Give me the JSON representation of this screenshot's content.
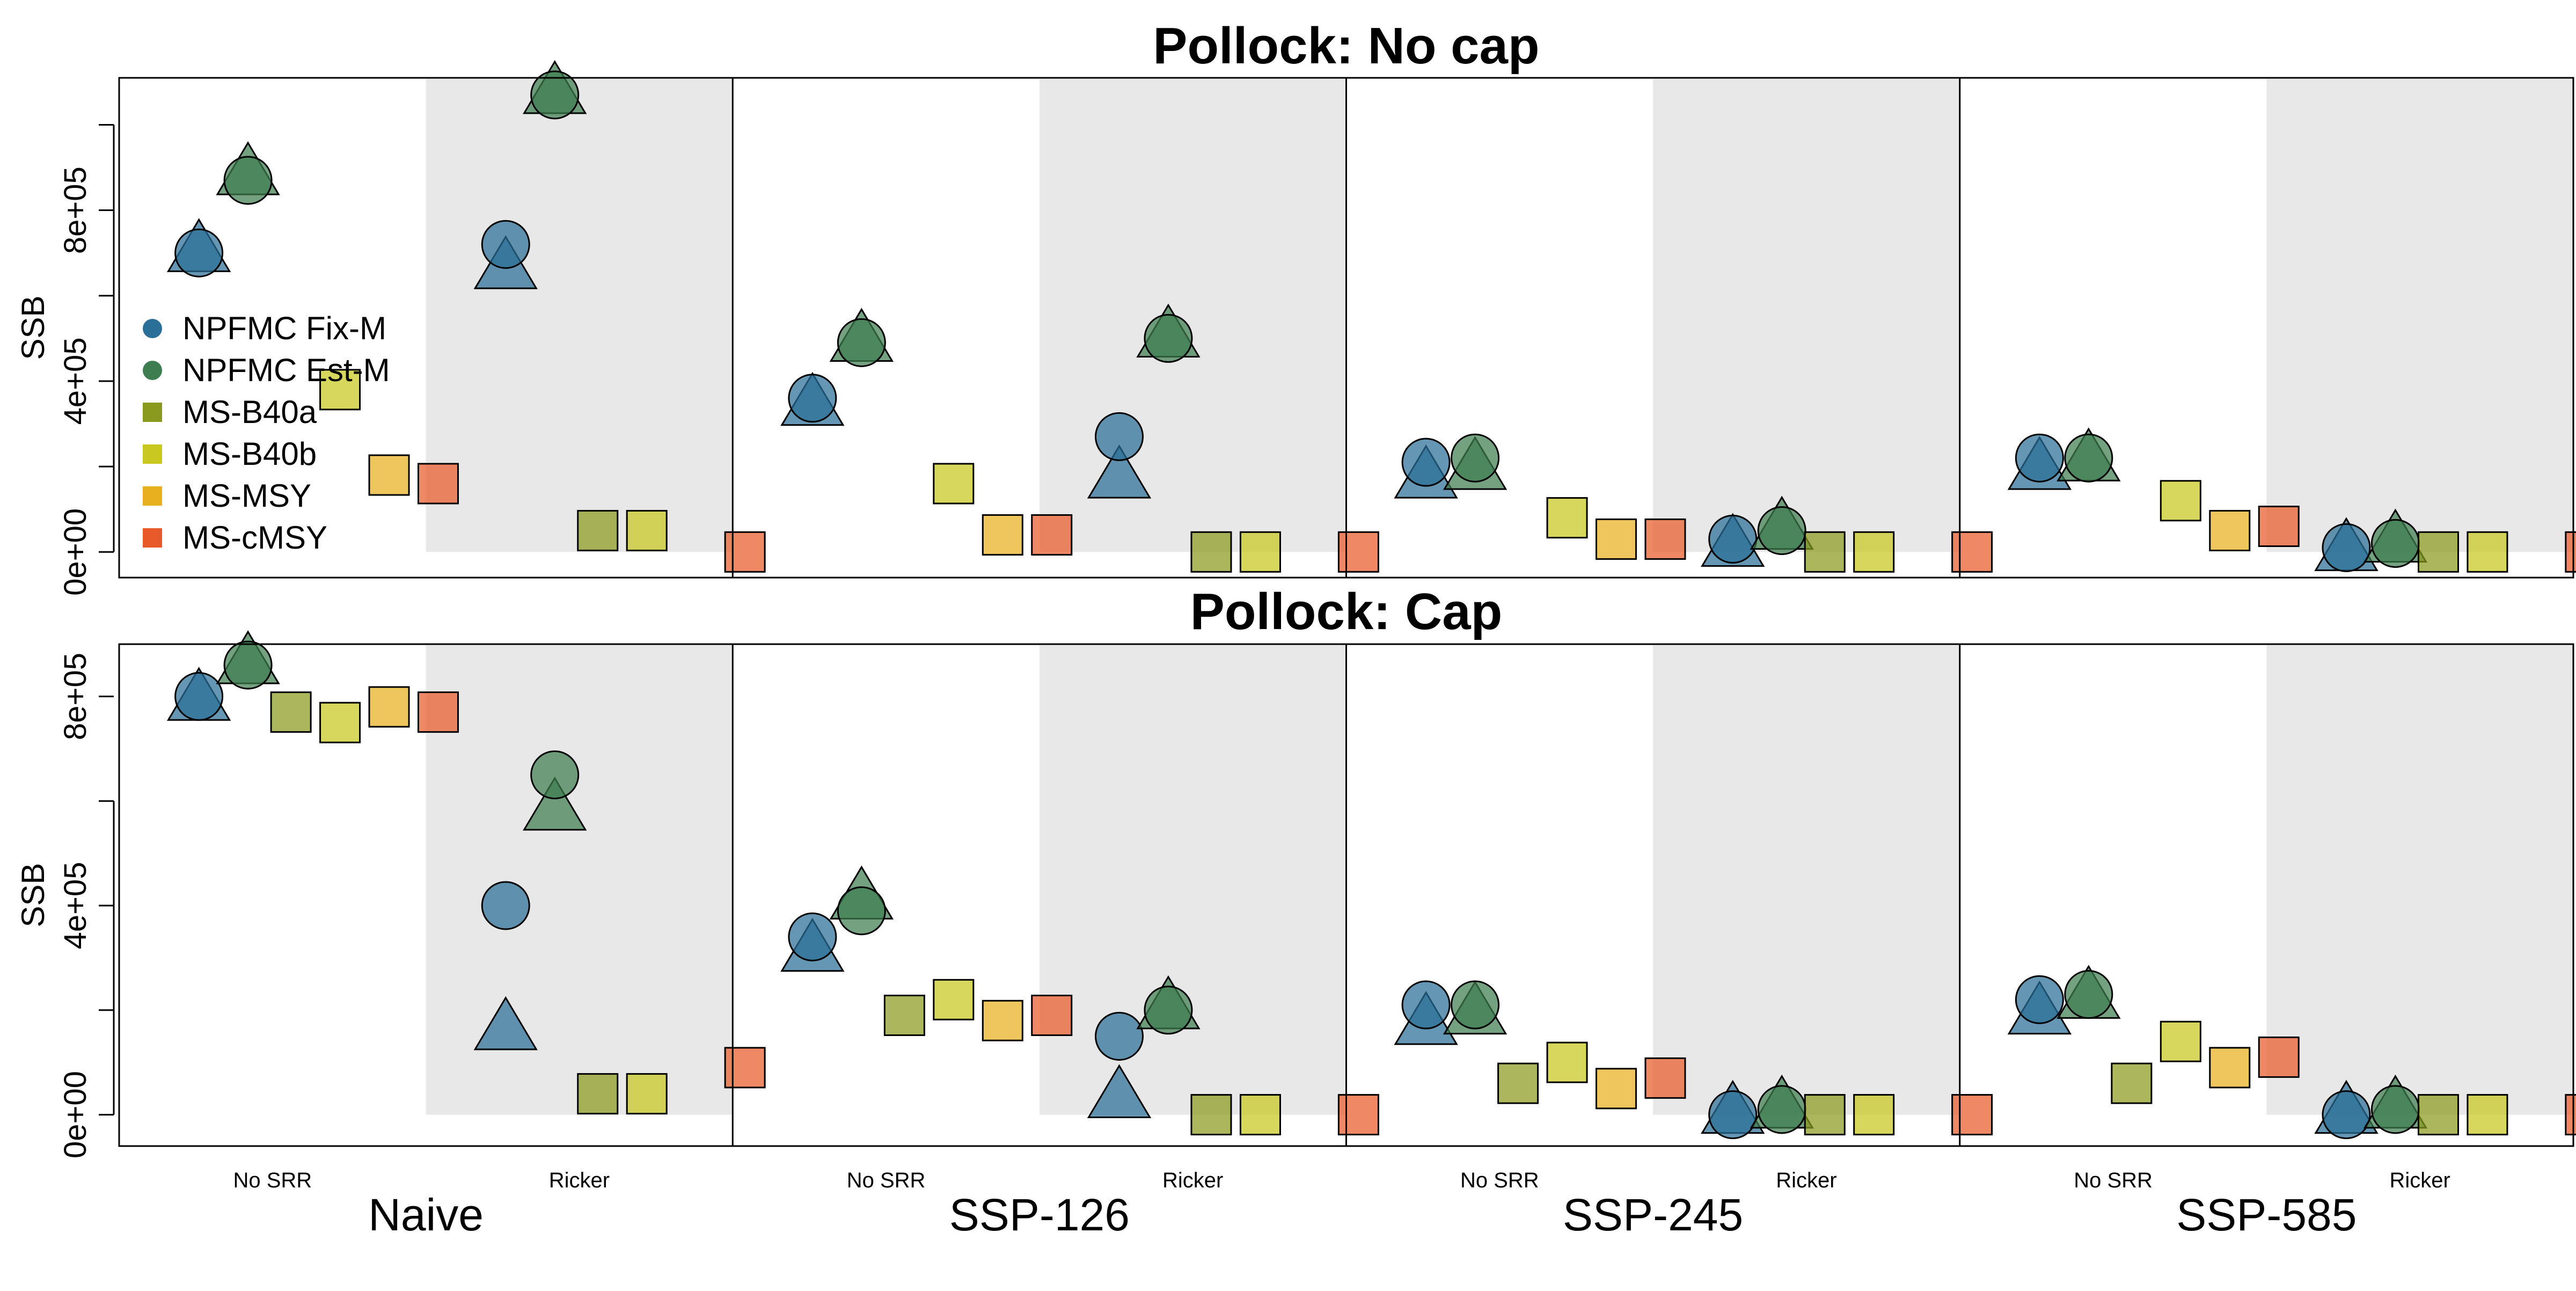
{
  "chart_data": [
    {
      "type": "scatter",
      "title": "Pollock: No cap",
      "ylabel": "SSB",
      "ylim": [
        -60000,
        1110000
      ],
      "yticks": [
        0,
        400000,
        800000
      ],
      "ytick_labels": [
        "0e+00",
        "4e+05",
        "8e+05"
      ],
      "yminor_ticks": [
        200000,
        600000,
        1000000
      ],
      "scenarios": [
        "Naive",
        "SSP-126",
        "SSP-245",
        "SSP-585"
      ],
      "srr": [
        "No SRR",
        "Ricker"
      ],
      "legend_position": "left",
      "series": [
        {
          "name": "NPFMC Fix-M",
          "color": "#2a6f97",
          "marker": "circle+triangle",
          "circle": [
            [
              700000,
              720000
            ],
            [
              360000,
              270000
            ],
            [
              210000,
              30000
            ],
            [
              220000,
              10000
            ]
          ],
          "triangle": [
            [
              700000,
              660000
            ],
            [
              340000,
              170000
            ],
            [
              170000,
              10000
            ],
            [
              190000,
              0
            ]
          ]
        },
        {
          "name": "NPFMC Est-M",
          "color": "#3e7d4f",
          "marker": "circle+triangle",
          "circle": [
            [
              870000,
              1070000
            ],
            [
              490000,
              500000
            ],
            [
              220000,
              50000
            ],
            [
              220000,
              20000
            ]
          ],
          "triangle": [
            [
              880000,
              1070000
            ],
            [
              490000,
              500000
            ],
            [
              190000,
              50000
            ],
            [
              210000,
              20000
            ]
          ]
        },
        {
          "name": "MS-B40a",
          "color": "#8a9a1f",
          "marker": "square",
          "values": [
            [
              null,
              50000
            ],
            [
              null,
              0
            ],
            [
              null,
              0
            ],
            [
              null,
              0
            ]
          ]
        },
        {
          "name": "MS-B40b",
          "color": "#c8c820",
          "marker": "square",
          "values": [
            [
              380000,
              50000
            ],
            [
              160000,
              0
            ],
            [
              80000,
              0
            ],
            [
              120000,
              0
            ]
          ]
        },
        {
          "name": "MS-MSY",
          "color": "#e8b01e",
          "marker": "square",
          "values": [
            [
              180000,
              null
            ],
            [
              40000,
              null
            ],
            [
              30000,
              null
            ],
            [
              50000,
              null
            ]
          ]
        },
        {
          "name": "MS-cMSY",
          "color": "#e85a2a",
          "marker": "square",
          "values": [
            [
              160000,
              0
            ],
            [
              40000,
              0
            ],
            [
              30000,
              0
            ],
            [
              60000,
              0
            ]
          ]
        }
      ]
    },
    {
      "type": "scatter",
      "title": "Pollock: Cap",
      "ylabel": "SSB",
      "ylim": [
        -60000,
        900000
      ],
      "yticks": [
        0,
        400000,
        800000
      ],
      "ytick_labels": [
        "0e+00",
        "4e+05",
        "8e+05"
      ],
      "yminor_ticks": [
        200000,
        600000
      ],
      "scenarios": [
        "Naive",
        "SSP-126",
        "SSP-245",
        "SSP-585"
      ],
      "srr": [
        "No SRR",
        "Ricker"
      ],
      "series": [
        {
          "name": "NPFMC Fix-M",
          "color": "#2a6f97",
          "marker": "circle+triangle",
          "circle": [
            [
              800000,
              400000
            ],
            [
              340000,
              150000
            ],
            [
              210000,
              0
            ],
            [
              220000,
              0
            ]
          ],
          "triangle": [
            [
              790000,
              160000
            ],
            [
              310000,
              30000
            ],
            [
              170000,
              0
            ],
            [
              190000,
              0
            ]
          ]
        },
        {
          "name": "NPFMC Est-M",
          "color": "#3e7d4f",
          "marker": "circle+triangle",
          "circle": [
            [
              860000,
              650000
            ],
            [
              390000,
              200000
            ],
            [
              210000,
              10000
            ],
            [
              230000,
              10000
            ]
          ],
          "triangle": [
            [
              860000,
              580000
            ],
            [
              410000,
              200000
            ],
            [
              190000,
              10000
            ],
            [
              220000,
              10000
            ]
          ]
        },
        {
          "name": "MS-B40a",
          "color": "#8a9a1f",
          "marker": "square",
          "values": [
            [
              770000,
              40000
            ],
            [
              190000,
              0
            ],
            [
              60000,
              0
            ],
            [
              60000,
              0
            ]
          ]
        },
        {
          "name": "MS-B40b",
          "color": "#c8c820",
          "marker": "square",
          "values": [
            [
              750000,
              40000
            ],
            [
              220000,
              0
            ],
            [
              100000,
              0
            ],
            [
              140000,
              0
            ]
          ]
        },
        {
          "name": "MS-MSY",
          "color": "#e8b01e",
          "marker": "square",
          "values": [
            [
              780000,
              null
            ],
            [
              180000,
              null
            ],
            [
              50000,
              null
            ],
            [
              90000,
              null
            ]
          ]
        },
        {
          "name": "MS-cMSY",
          "color": "#e85a2a",
          "marker": "square",
          "values": [
            [
              770000,
              90000
            ],
            [
              190000,
              0
            ],
            [
              70000,
              0
            ],
            [
              110000,
              0
            ]
          ]
        }
      ]
    }
  ]
}
